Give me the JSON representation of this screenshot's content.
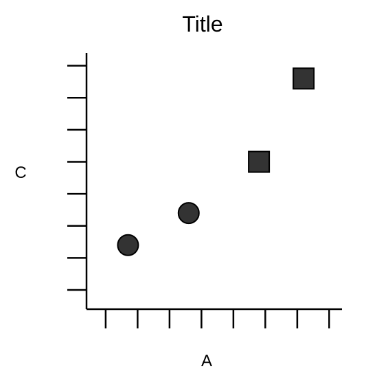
{
  "chart_data": {
    "type": "scatter",
    "title": "Title",
    "xlabel": "A",
    "ylabel": "C",
    "xlim": [
      0,
      8
    ],
    "ylim": [
      0,
      8
    ],
    "x_ticks": [
      0.6,
      1.6,
      2.6,
      3.6,
      4.6,
      5.6,
      6.6,
      7.6
    ],
    "y_ticks": [
      0.6,
      1.6,
      2.6,
      3.6,
      4.6,
      5.6,
      6.6,
      7.6
    ],
    "grid": false,
    "series": [
      {
        "marker": "circle",
        "color": "#333333",
        "x": [
          1.3,
          3.2
        ],
        "y": [
          2.0,
          3.0
        ]
      },
      {
        "marker": "square",
        "color": "#333333",
        "x": [
          5.4,
          6.8
        ],
        "y": [
          4.6,
          7.2
        ]
      }
    ]
  }
}
